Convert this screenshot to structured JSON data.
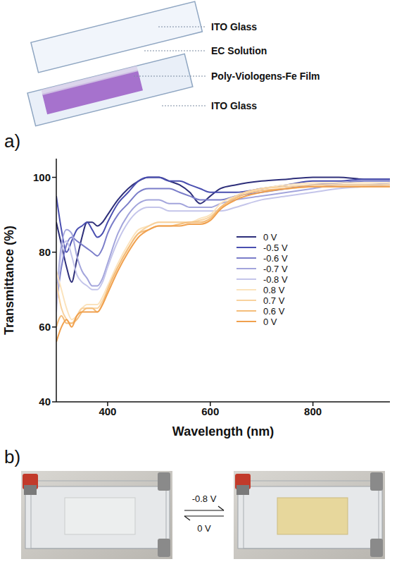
{
  "diagram": {
    "labels": [
      "ITO Glass",
      "EC Solution",
      "Poly-Viologens-Fe Film",
      "ITO Glass"
    ]
  },
  "panel_labels": [
    "a)",
    "b)"
  ],
  "chart_data": {
    "type": "line",
    "x": [
      300,
      310,
      320,
      330,
      340,
      350,
      360,
      370,
      380,
      390,
      400,
      420,
      440,
      460,
      480,
      500,
      520,
      540,
      560,
      580,
      600,
      620,
      650,
      700,
      750,
      800,
      850,
      900,
      950
    ],
    "xlim": [
      300,
      950
    ],
    "xticks": [
      400,
      600,
      800
    ],
    "ylim": [
      40,
      105
    ],
    "yticks": [
      40,
      60,
      80,
      100
    ],
    "x_label": "Wavelength (nm)",
    "y_label": "Transmittance (%)",
    "grid": false,
    "legend": "right",
    "series": [
      {
        "name": "0 V",
        "color": "#2e2f7a",
        "values": [
          88,
          82,
          76,
          72,
          78,
          84,
          88,
          88,
          87,
          88,
          90,
          94,
          97,
          99,
          100,
          100,
          99,
          98,
          96,
          93,
          95,
          97,
          98,
          99,
          99.5,
          100,
          100,
          99.5,
          99.5
        ]
      },
      {
        "name": "-0.5 V",
        "color": "#4a4fb0",
        "values": [
          95,
          86,
          80,
          83,
          86,
          87,
          88,
          86,
          84,
          85,
          88,
          93,
          96,
          99,
          100,
          100,
          99,
          99,
          98,
          97,
          96,
          96,
          96,
          97,
          98,
          99,
          99,
          99.5,
          99.5
        ]
      },
      {
        "name": "-0.6 V",
        "color": "#7a7dc9",
        "values": [
          66,
          76,
          82,
          84,
          83,
          82,
          81,
          80,
          79,
          81,
          85,
          90,
          93,
          96,
          97,
          97,
          97,
          96,
          95,
          94,
          94,
          94,
          95,
          96,
          97,
          98,
          98.5,
          99,
          99
        ]
      },
      {
        "name": "-0.7 V",
        "color": "#a3a5dc",
        "values": [
          67,
          82,
          86,
          85,
          79,
          75,
          73,
          71,
          71,
          73,
          77,
          85,
          90,
          93,
          94,
          94,
          93,
          93,
          92,
          92,
          92,
          93,
          94,
          95,
          96,
          97,
          98,
          98,
          98.5
        ]
      },
      {
        "name": "-0.8 V",
        "color": "#c4c5ea",
        "values": [
          64,
          80,
          83,
          79,
          74,
          72,
          71,
          70,
          70,
          72,
          76,
          83,
          88,
          91,
          92,
          92,
          91,
          91,
          91,
          91,
          91,
          91,
          92,
          94,
          95,
          96,
          97,
          97.5,
          98
        ]
      },
      {
        "name": "0.8 V",
        "color": "#fbe3bd",
        "values": [
          75,
          70,
          65,
          62,
          63,
          65,
          66,
          66,
          66,
          68,
          71,
          77,
          82,
          86,
          87,
          88,
          88,
          88,
          88,
          89,
          90,
          93,
          95,
          97,
          98,
          98.5,
          98.5,
          98.5,
          98.5
        ]
      },
      {
        "name": "0.7 V",
        "color": "#f8d29e",
        "values": [
          72,
          65,
          62,
          61,
          63,
          65,
          65,
          65,
          65,
          67,
          70,
          76,
          81,
          85,
          87,
          88,
          88,
          88,
          88,
          88.5,
          89.5,
          92,
          95,
          97,
          97.5,
          98,
          98,
          98,
          98
        ]
      },
      {
        "name": "0.6 V",
        "color": "#f4bd7a",
        "values": [
          60,
          63,
          61,
          61,
          62,
          64,
          65,
          65,
          64,
          66,
          70,
          76,
          81,
          85,
          86,
          87,
          87,
          87.5,
          88,
          88,
          89,
          92,
          94.5,
          96.5,
          97,
          97.5,
          97.5,
          97.5,
          97.5
        ]
      },
      {
        "name": "0 V",
        "color": "#f0a04e",
        "values": [
          56,
          60,
          62,
          60,
          63,
          64,
          64,
          64,
          64,
          66,
          69,
          75,
          80,
          84,
          86,
          87,
          87,
          87,
          87.5,
          87.5,
          88.5,
          91.5,
          94,
          96,
          97,
          97.5,
          97.5,
          97.5,
          97.5
        ]
      }
    ]
  },
  "photos": {
    "forward_label": "-0.8 V",
    "backward_label": "0 V"
  }
}
